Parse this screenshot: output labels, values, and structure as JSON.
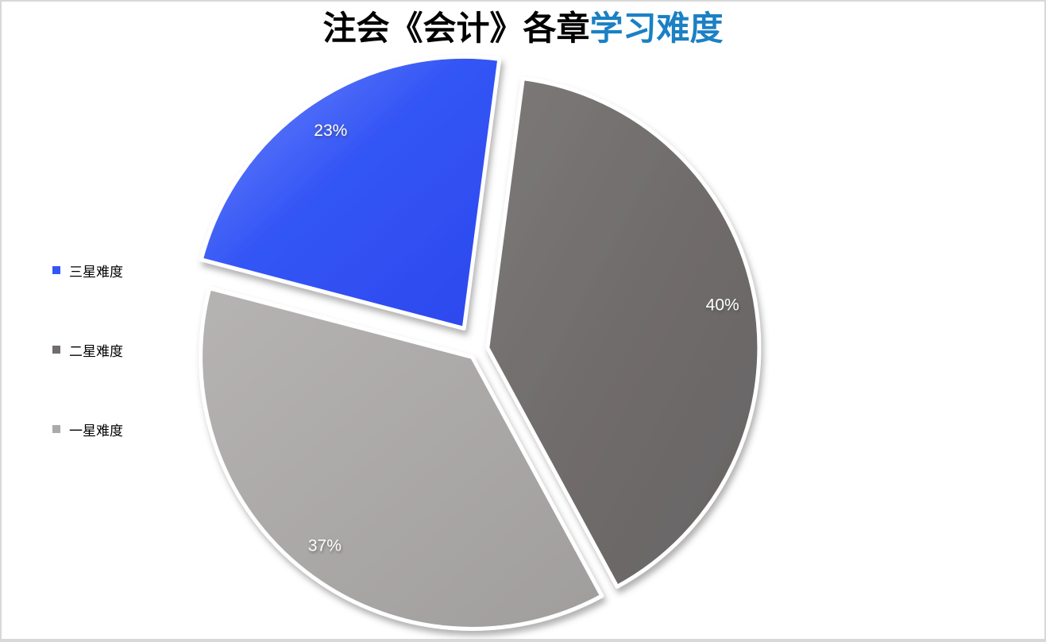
{
  "title": {
    "black_part": "注会《会计》各章",
    "blue_part": "学习难度",
    "blue_color": "#1b80c4"
  },
  "chart_data": {
    "type": "pie",
    "title": "注会《会计》各章学习难度",
    "direction": "clockwise",
    "start_angle_deg": 7.5,
    "legend_position": "left",
    "label_color": "#ffffff",
    "slices": [
      {
        "label": "二星难度",
        "value": 40,
        "display": "40%",
        "color": "#716d6d",
        "color_light": "#7d7979",
        "color_dark": "#676363",
        "explode": 12
      },
      {
        "label": "一星难度",
        "value": 37,
        "display": "37%",
        "color": "#aca9a9",
        "color_light": "#b6b3b3",
        "color_dark": "#a09d9d",
        "explode": 12
      },
      {
        "label": "三星难度",
        "value": 23,
        "display": "23%",
        "color": "#3355f5",
        "color_light": "#7289fb",
        "color_dark": "#2c48ee",
        "explode": 32
      }
    ]
  },
  "legend": {
    "items": [
      {
        "label": "三星难度",
        "color": "#3355f5"
      },
      {
        "label": "二星难度",
        "color": "#716d6d"
      },
      {
        "label": "一星难度",
        "color": "#aca9a9"
      }
    ]
  }
}
